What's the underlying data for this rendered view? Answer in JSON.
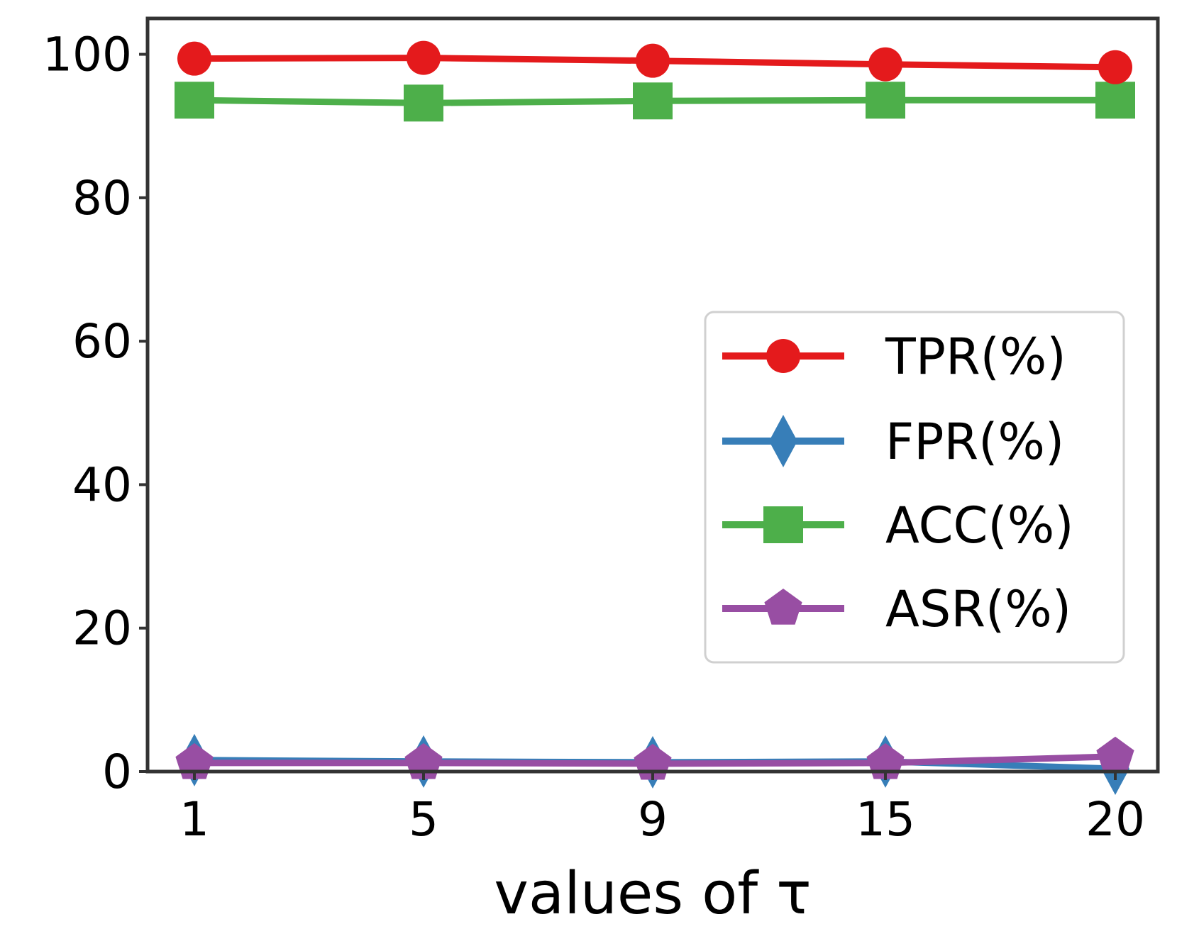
{
  "chart_data": {
    "type": "line",
    "title": "",
    "xlabel": "values of τ",
    "ylabel": "",
    "categories": [
      "1",
      "5",
      "9",
      "15",
      "20"
    ],
    "ylim": [
      0,
      105
    ],
    "yticks": [
      0,
      20,
      40,
      60,
      80,
      100
    ],
    "grid": false,
    "legend_position": "center-right",
    "series": [
      {
        "name": "TPR(%)",
        "values": [
          99.4,
          99.5,
          99.1,
          98.6,
          98.2
        ],
        "color": "#e41a1c",
        "marker": "circle"
      },
      {
        "name": "FPR(%)",
        "values": [
          1.6,
          1.4,
          1.3,
          1.4,
          0.4
        ],
        "color": "#377eb8",
        "marker": "diamond"
      },
      {
        "name": "ACC(%)",
        "values": [
          93.6,
          93.2,
          93.5,
          93.6,
          93.6
        ],
        "color": "#4daf4a",
        "marker": "square"
      },
      {
        "name": "ASR(%)",
        "values": [
          1.2,
          1.2,
          1.1,
          1.2,
          2.1
        ],
        "color": "#984ea3",
        "marker": "pentagon"
      }
    ]
  }
}
